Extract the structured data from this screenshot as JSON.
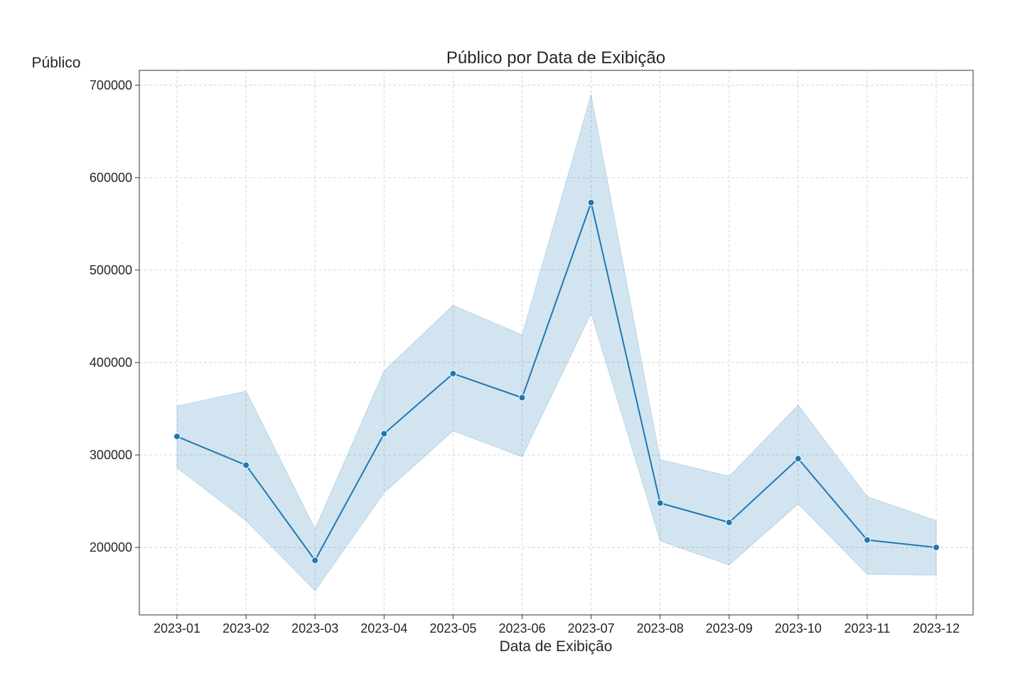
{
  "chart_data": {
    "type": "line",
    "title": "Público por Data de Exibição",
    "xlabel": "Data de Exibição",
    "ylabel": "Público",
    "categories": [
      "2023-01",
      "2023-02",
      "2023-03",
      "2023-04",
      "2023-05",
      "2023-06",
      "2023-07",
      "2023-08",
      "2023-09",
      "2023-10",
      "2023-11",
      "2023-12"
    ],
    "series": [
      {
        "values": [
          320000,
          289000,
          186000,
          323000,
          388000,
          362000,
          573000,
          248000,
          227000,
          296000,
          208000,
          200000
        ],
        "ci_lower": [
          286000,
          229000,
          153000,
          259000,
          326000,
          298000,
          453000,
          207000,
          181000,
          247000,
          171000,
          170000
        ],
        "ci_upper": [
          353000,
          369000,
          220000,
          391000,
          462000,
          430000,
          690000,
          295000,
          277000,
          354000,
          255000,
          229000
        ]
      }
    ],
    "yticks": [
      200000,
      300000,
      400000,
      500000,
      600000,
      700000
    ],
    "ylim": [
      127000,
      716000
    ],
    "grid": true,
    "colors": {
      "line": "#1f77b4",
      "band": "#1f77b4",
      "marker_edge": "#ffffff"
    }
  }
}
